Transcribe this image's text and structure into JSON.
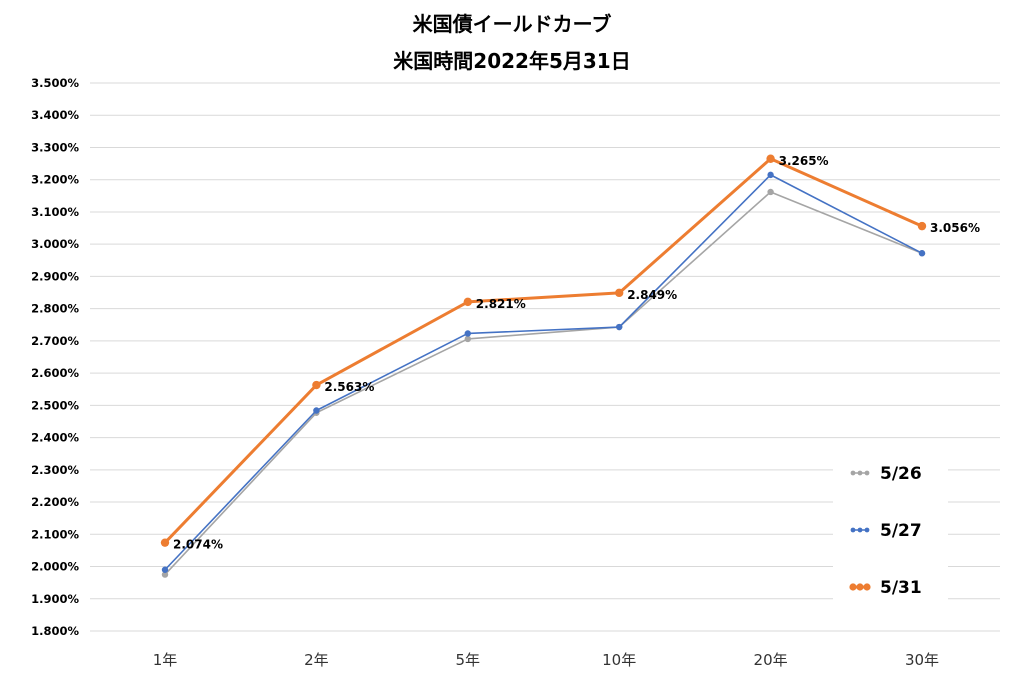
{
  "chart_data": {
    "type": "line",
    "title": "米国債イールドカーブ",
    "subtitle": "米国時間2022年5月31日",
    "categories": [
      "1年",
      "2年",
      "5年",
      "10年",
      "20年",
      "30年"
    ],
    "ylim": [
      1.8,
      3.5
    ],
    "ytick_step": 0.1,
    "ytick_format": "percent-3dp",
    "grid": true,
    "legend_position": "right-bottom",
    "series": [
      {
        "name": "5/26",
        "color": "#a5a5a5",
        "values": [
          1.975,
          2.477,
          2.706,
          2.743,
          3.162,
          2.972
        ],
        "labels": false
      },
      {
        "name": "5/27",
        "color": "#4472c4",
        "values": [
          1.99,
          2.484,
          2.723,
          2.743,
          3.215,
          2.972
        ],
        "labels": false
      },
      {
        "name": "5/31",
        "color": "#ed7d31",
        "values": [
          2.074,
          2.563,
          2.821,
          2.849,
          3.265,
          3.056
        ],
        "labels": true
      }
    ],
    "data_labels": [
      "2.074%",
      "2.563%",
      "2.821%",
      "2.849%",
      "3.265%",
      "3.056%"
    ]
  }
}
